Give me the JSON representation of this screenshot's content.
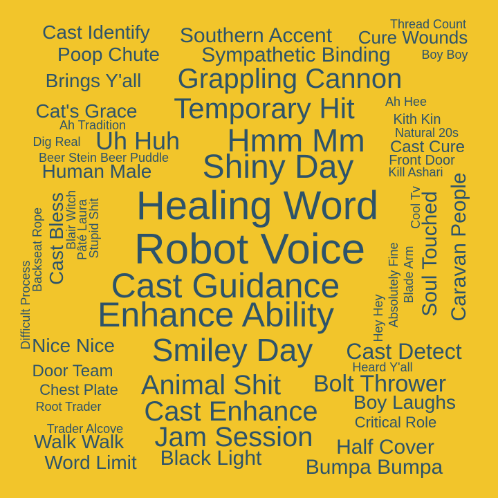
{
  "colors": {
    "background": "#f2c52b",
    "text": "#2d536a"
  },
  "words": [
    {
      "text": "Robot Voice"
    },
    {
      "text": "Healing Word"
    },
    {
      "text": "Cast Guidance"
    },
    {
      "text": "Enhance Ability"
    },
    {
      "text": "Shiny Day"
    },
    {
      "text": "Smiley Day"
    },
    {
      "text": "Hmm Mm"
    },
    {
      "text": "Temporary Hit"
    },
    {
      "text": "Grappling Cannon"
    },
    {
      "text": "Animal Shit"
    },
    {
      "text": "Cast Enhance"
    },
    {
      "text": "Jam Session"
    },
    {
      "text": "Bolt Thrower"
    },
    {
      "text": "Uh Huh"
    },
    {
      "text": "Cast Detect"
    },
    {
      "text": "Caravan People"
    },
    {
      "text": "Soul Touched"
    },
    {
      "text": "Half Cover"
    },
    {
      "text": "Bumpa Bumpa"
    },
    {
      "text": "Black Light"
    },
    {
      "text": "Boy Laughs"
    },
    {
      "text": "Southern Accent"
    },
    {
      "text": "Sympathetic Binding"
    },
    {
      "text": "Cast Identify"
    },
    {
      "text": "Poop Chute"
    },
    {
      "text": "Brings Y'all"
    },
    {
      "text": "Cat's Grace"
    },
    {
      "text": "Human Male"
    },
    {
      "text": "Cast Bless"
    },
    {
      "text": "Nice Nice"
    },
    {
      "text": "Walk Walk"
    },
    {
      "text": "Word Limit"
    },
    {
      "text": "Cure Wounds"
    },
    {
      "text": "Cast Cure"
    },
    {
      "text": "Door Team"
    },
    {
      "text": "Chest Plate"
    },
    {
      "text": "Critical Role"
    },
    {
      "text": "Kith Kin"
    },
    {
      "text": "Front Door"
    },
    {
      "text": "Thread Count"
    },
    {
      "text": "Boy Boy"
    },
    {
      "text": "Ah Hee"
    },
    {
      "text": "Natural 20s"
    },
    {
      "text": "Kill Ashari"
    },
    {
      "text": "Cool Tv"
    },
    {
      "text": "Ah Tradition"
    },
    {
      "text": "Dig Real"
    },
    {
      "text": "Beer Stein Beer Puddle"
    },
    {
      "text": "Root Trader"
    },
    {
      "text": "Trader Alcove"
    },
    {
      "text": "Heard Y'all"
    },
    {
      "text": "Blair Witch"
    },
    {
      "text": "Pâté Laura"
    },
    {
      "text": "Stupid Shit"
    },
    {
      "text": "Backseat Rope"
    },
    {
      "text": "Difficult Process"
    },
    {
      "text": "Absolutely Fine"
    },
    {
      "text": "Blade Arm"
    },
    {
      "text": "Hey Hey"
    }
  ]
}
